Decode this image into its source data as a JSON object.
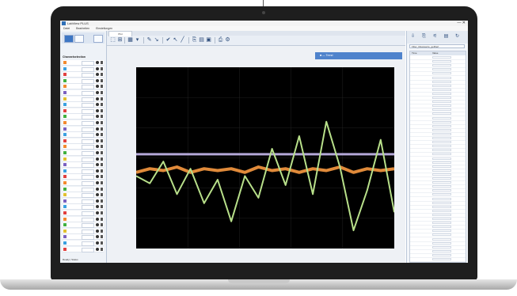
{
  "window": {
    "title": "LabView PLUS",
    "buttons": "—  ✕"
  },
  "menu": [
    "Datei",
    "Bearbeiten",
    "Einstellungen"
  ],
  "tab": {
    "label": "Plot"
  },
  "legend_stripe": {
    "label": "■ — Trend"
  },
  "left_panel": {
    "header": "Channelselection",
    "footer": "Ready  |  Status",
    "channels": [
      {
        "color": "#f28a30"
      },
      {
        "color": "#3aa0e0"
      },
      {
        "color": "#e04040"
      },
      {
        "color": "#40b040"
      },
      {
        "color": "#f28a30"
      },
      {
        "color": "#7a60c0"
      },
      {
        "color": "#e0c030"
      },
      {
        "color": "#3aa0e0"
      },
      {
        "color": "#e04040"
      },
      {
        "color": "#40b040"
      },
      {
        "color": "#f28a30"
      },
      {
        "color": "#7a60c0"
      },
      {
        "color": "#3aa0e0"
      },
      {
        "color": "#e04040"
      },
      {
        "color": "#f28a30"
      },
      {
        "color": "#40b040"
      },
      {
        "color": "#e0c030"
      },
      {
        "color": "#7a60c0"
      },
      {
        "color": "#3aa0e0"
      },
      {
        "color": "#e04040"
      },
      {
        "color": "#f28a30"
      },
      {
        "color": "#40b040"
      },
      {
        "color": "#e0c030"
      },
      {
        "color": "#7a60c0"
      },
      {
        "color": "#3aa0e0"
      },
      {
        "color": "#e04040"
      },
      {
        "color": "#f28a30"
      },
      {
        "color": "#40b040"
      },
      {
        "color": "#e0c030"
      },
      {
        "color": "#7a60c0"
      },
      {
        "color": "#3aa0e0"
      },
      {
        "color": "#e04040"
      }
    ]
  },
  "right_panel": {
    "field": "Filter_Messwerte_gefiltert",
    "head": [
      "Time",
      "Value",
      ""
    ],
    "rows": 52
  },
  "colors": {
    "plot_bg": "#000000",
    "green_series": "#b8e08a",
    "orange_series": "#e08a3a",
    "lavender_series": "#b4a8d8",
    "accent": "#4f83cc"
  },
  "chart_data": {
    "type": "line",
    "title": "",
    "xlabel": "",
    "ylabel": "",
    "ylim": [
      0,
      1
    ],
    "series": [
      {
        "color": "#b4a8d8",
        "values": [
          0.52,
          0.52,
          0.52,
          0.52,
          0.52,
          0.52,
          0.52,
          0.52,
          0.52,
          0.52,
          0.52,
          0.52,
          0.52,
          0.52,
          0.52,
          0.52,
          0.52,
          0.52,
          0.52,
          0.52
        ]
      },
      {
        "color": "#e08a3a",
        "values": [
          0.42,
          0.44,
          0.43,
          0.45,
          0.42,
          0.44,
          0.43,
          0.44,
          0.42,
          0.45,
          0.43,
          0.44,
          0.42,
          0.44,
          0.43,
          0.45,
          0.42,
          0.44,
          0.43,
          0.44
        ]
      },
      {
        "color": "#b8e08a",
        "values": [
          0.4,
          0.36,
          0.48,
          0.3,
          0.44,
          0.25,
          0.38,
          0.15,
          0.4,
          0.28,
          0.55,
          0.35,
          0.62,
          0.3,
          0.7,
          0.45,
          0.1,
          0.32,
          0.6,
          0.2
        ]
      }
    ],
    "grid": true
  }
}
